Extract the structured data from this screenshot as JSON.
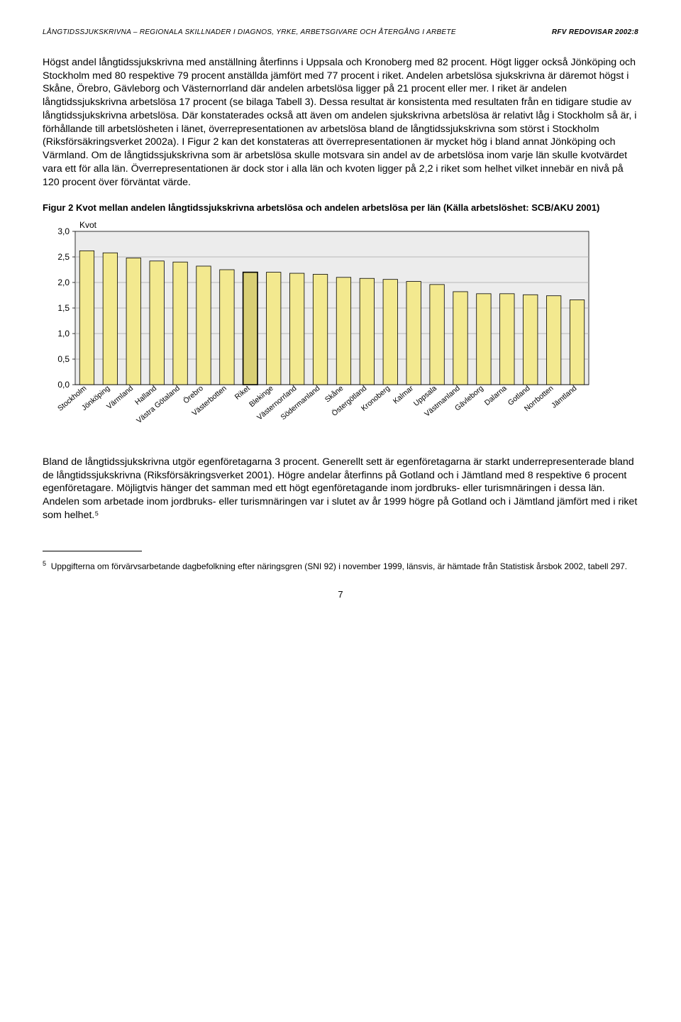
{
  "header": {
    "left": "LÅNGTIDSSJUKSKRIVNA – REGIONALA SKILLNADER I DIAGNOS, YRKE, ARBETSGIVARE OCH ÅTERGÅNG I ARBETE",
    "right": "RFV REDOVISAR 2002:8"
  },
  "paragraphs": {
    "p1": "Högst andel långtidssjukskrivna med anställning återfinns i Uppsala och Kronoberg med 82 procent. Högt ligger också Jönköping och Stockholm med 80 respektive 79 procent anställda jämfört med 77 procent i riket. Andelen arbetslösa sjukskrivna är däremot högst i Skåne, Örebro, Gävleborg och Västernorrland där andelen arbetslösa ligger på 21 procent eller mer. I riket är andelen långtidssjukskrivna arbetslösa 17 procent (se bilaga Tabell 3). Dessa resultat är konsistenta med resultaten från en tidigare studie av långtidssjukskrivna arbetslösa. Där konstaterades också att även om andelen sjukskrivna arbetslösa är relativt låg i Stockholm så är, i förhållande till arbetslösheten i länet, överrepresentationen av arbetslösa bland de långtidssjukskrivna som störst i Stockholm (Riksförsäkringsverket 2002a). I Figur 2 kan det konstateras att överrepresentationen är mycket hög i bland annat Jönköping och Värmland. Om de långtidssjukskrivna som är arbetslösa skulle motsvara sin andel av de arbetslösa inom varje län skulle kvotvärdet vara ett för alla län. Överrepresentationen är dock stor i alla län och kvoten ligger på 2,2 i riket som helhet vilket innebär en nivå på 120 procent över förväntat värde.",
    "p2": "Bland de långtidssjukskrivna utgör egenföretagarna 3 procent. Generellt sett är egenföretagarna är starkt underrepresenterade bland de långtidssjukskrivna (Riksförsäkringsverket 2001). Högre andelar återfinns på Gotland och i Jämtland med 8 respektive 6 procent egenföretagare. Möjligtvis hänger det samman med ett högt egenföretagande inom jordbruks- eller turismnäringen i dessa län. Andelen som arbetade inom jordbruks- eller turismnäringen var i slutet av år 1999 högre på Gotland och i Jämtland jämfört med i riket som helhet.⁵"
  },
  "figure": {
    "caption": "Figur 2  Kvot mellan andelen långtidssjukskrivna arbetslösa och andelen arbetslösa per län (Källa arbetslöshet: SCB/AKU 2001)",
    "ylabel": "Kvot",
    "chart": {
      "type": "bar",
      "ylim": [
        0,
        3.0
      ],
      "ytick_step": 0.5,
      "yticks": [
        "0,0",
        "0,5",
        "1,0",
        "1,5",
        "2,0",
        "2,5",
        "3,0"
      ],
      "background_color": "#ececec",
      "plot_background": "#ececec",
      "grid_color": "#a8a8a8",
      "bar_fill": "#f3e98f",
      "bar_stroke": "#000000",
      "riket_fill": "#d9cf75",
      "axis_color": "#000000",
      "label_fontsize": 10.5,
      "tick_fontsize": 12,
      "bar_width": 0.62,
      "categories": [
        "Stockholm",
        "Jönköping",
        "Värmland",
        "Halland",
        "Västra Götaland",
        "Örebro",
        "Västerbotten",
        "Riket",
        "Blekinge",
        "Västernorrland",
        "Södermanland",
        "Skåne",
        "Östergötland",
        "Kronoberg",
        "Kalmar",
        "Uppsala",
        "Västmanland",
        "Gävleborg",
        "Dalarna",
        "Gotland",
        "Norrbotten",
        "Jämtland"
      ],
      "values": [
        2.62,
        2.58,
        2.48,
        2.42,
        2.4,
        2.32,
        2.25,
        2.2,
        2.2,
        2.18,
        2.16,
        2.1,
        2.08,
        2.06,
        2.02,
        1.96,
        1.82,
        1.78,
        1.78,
        1.76,
        1.74,
        1.66
      ],
      "highlight_index": 7
    }
  },
  "footnote": {
    "marker": "5",
    "text": "Uppgifterna om förvärvsarbetande dagbefolkning efter näringsgren (SNI 92) i november 1999, länsvis, är hämtade från Statistisk årsbok 2002, tabell 297."
  },
  "page_number": "7"
}
